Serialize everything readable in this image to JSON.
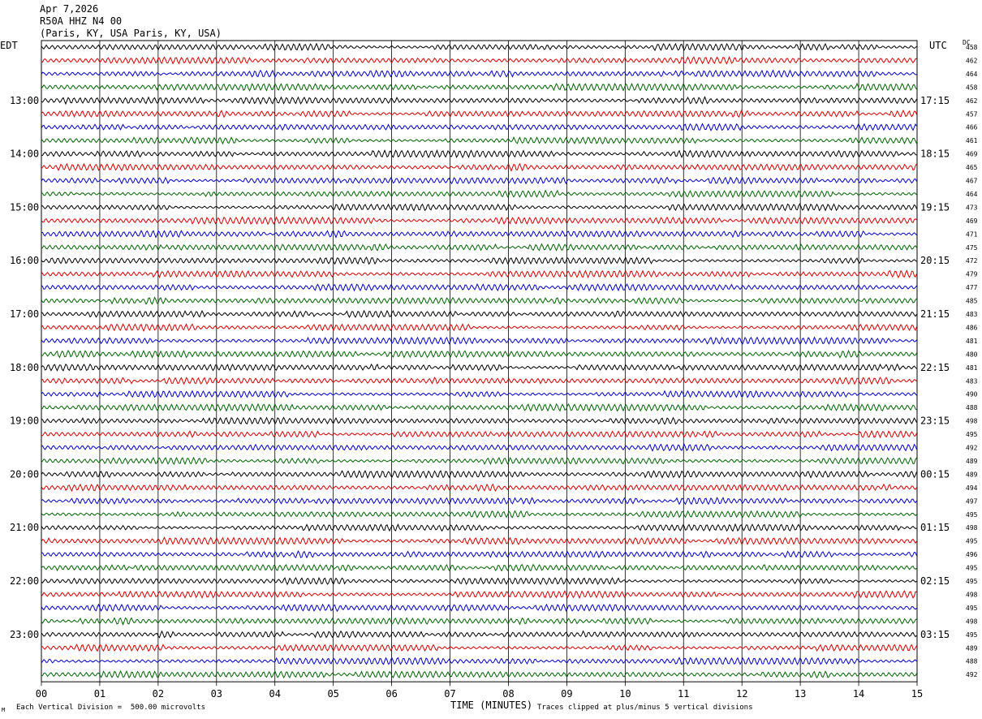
{
  "header": {
    "date": "Apr 7,2026",
    "station": "R50A HHZ N4 00",
    "location": "(Paris, KY, USA Paris, KY, USA)"
  },
  "left_label": "EDT",
  "right_label": "UTC",
  "dc_label": "DC",
  "x_axis_title": "TIME (MINUTES)",
  "scale_note": "Each Vertical Division =  500.00 microvolts",
  "clip_note": "Traces clipped at plus/minus 5 vertical divisions",
  "corner_mark": "M",
  "colors": [
    "#000000",
    "#d40000",
    "#0000c8",
    "#006400"
  ],
  "chart_data": {
    "type": "line",
    "title": "R50A HHZ N4 00",
    "xlabel": "TIME (MINUTES)",
    "xlim": [
      0,
      15
    ],
    "x_ticks": [
      "00",
      "01",
      "02",
      "03",
      "04",
      "05",
      "06",
      "07",
      "08",
      "09",
      "10",
      "11",
      "12",
      "13",
      "14",
      "15"
    ],
    "trace_count": 48,
    "left_time_labels": [
      {
        "trace": 4,
        "label": "13:00"
      },
      {
        "trace": 8,
        "label": "14:00"
      },
      {
        "trace": 12,
        "label": "15:00"
      },
      {
        "trace": 16,
        "label": "16:00"
      },
      {
        "trace": 20,
        "label": "17:00"
      },
      {
        "trace": 24,
        "label": "18:00"
      },
      {
        "trace": 28,
        "label": "19:00"
      },
      {
        "trace": 32,
        "label": "20:00"
      },
      {
        "trace": 36,
        "label": "21:00"
      },
      {
        "trace": 40,
        "label": "22:00"
      },
      {
        "trace": 44,
        "label": "23:00"
      }
    ],
    "right_time_labels": [
      {
        "trace": 4,
        "label": "17:15"
      },
      {
        "trace": 8,
        "label": "18:15"
      },
      {
        "trace": 12,
        "label": "19:15"
      },
      {
        "trace": 16,
        "label": "20:15"
      },
      {
        "trace": 20,
        "label": "21:15"
      },
      {
        "trace": 24,
        "label": "22:15"
      },
      {
        "trace": 28,
        "label": "23:15"
      },
      {
        "trace": 32,
        "label": "00:15"
      },
      {
        "trace": 36,
        "label": "01:15"
      },
      {
        "trace": 40,
        "label": "02:15"
      },
      {
        "trace": 44,
        "label": "03:15"
      }
    ],
    "dc_offsets": [
      "458",
      "462",
      "464",
      "458",
      "462",
      "457",
      "466",
      "461",
      "469",
      "465",
      "467",
      "464",
      "473",
      "469",
      "471",
      "475",
      "472",
      "479",
      "477",
      "485",
      "483",
      "486",
      "481",
      "480",
      "481",
      "483",
      "490",
      "488",
      "498",
      "495",
      "492",
      "489",
      "489",
      "494",
      "497",
      "495",
      "498",
      "495",
      "496",
      "495",
      "495",
      "498",
      "495",
      "498",
      "495",
      "489",
      "488",
      "492"
    ]
  }
}
